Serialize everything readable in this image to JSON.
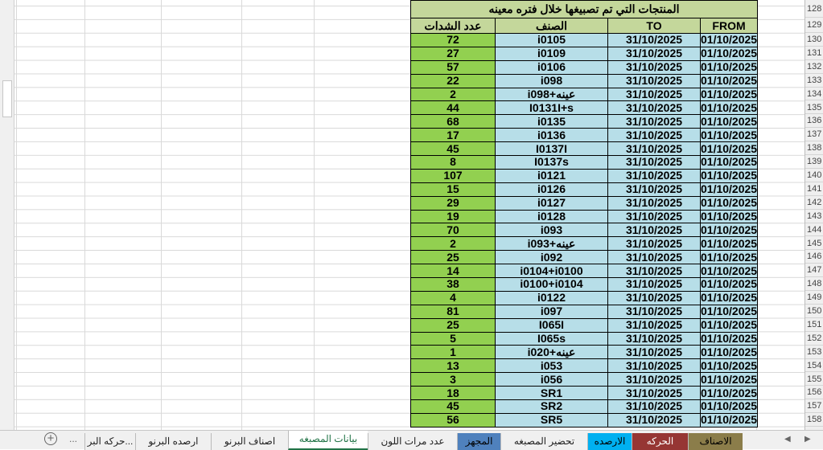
{
  "sheet": {
    "title": "المنتجات التي تم تصبيغها خلال فتره معينه",
    "headers": {
      "from": "FROM",
      "to": "TO",
      "item": "الصنف",
      "count": "عدد الشدات"
    },
    "row_numbers": [
      "128",
      "129",
      "130",
      "131",
      "132",
      "133",
      "134",
      "135",
      "136",
      "137",
      "138",
      "139",
      "140",
      "141",
      "142",
      "143",
      "144",
      "145",
      "146",
      "147",
      "148",
      "149",
      "150",
      "151",
      "152",
      "153",
      "154",
      "155",
      "156",
      "157",
      "158"
    ],
    "rows": [
      {
        "from": "01/10/2025",
        "to": "31/10/2025",
        "item": "i0105",
        "count": "72"
      },
      {
        "from": "01/10/2025",
        "to": "31/10/2025",
        "item": "i0109",
        "count": "27"
      },
      {
        "from": "01/10/2025",
        "to": "31/10/2025",
        "item": "i0106",
        "count": "57"
      },
      {
        "from": "01/10/2025",
        "to": "31/10/2025",
        "item": "i098",
        "count": "22"
      },
      {
        "from": "01/10/2025",
        "to": "31/10/2025",
        "item": "i098+عينه",
        "count": "2"
      },
      {
        "from": "01/10/2025",
        "to": "31/10/2025",
        "item": "I0131I+s",
        "count": "44"
      },
      {
        "from": "01/10/2025",
        "to": "31/10/2025",
        "item": "i0135",
        "count": "68"
      },
      {
        "from": "01/10/2025",
        "to": "31/10/2025",
        "item": "i0136",
        "count": "17"
      },
      {
        "from": "01/10/2025",
        "to": "31/10/2025",
        "item": "I0137I",
        "count": "45"
      },
      {
        "from": "01/10/2025",
        "to": "31/10/2025",
        "item": "I0137s",
        "count": "8"
      },
      {
        "from": "01/10/2025",
        "to": "31/10/2025",
        "item": "i0121",
        "count": "107"
      },
      {
        "from": "01/10/2025",
        "to": "31/10/2025",
        "item": "i0126",
        "count": "15"
      },
      {
        "from": "01/10/2025",
        "to": "31/10/2025",
        "item": "i0127",
        "count": "29"
      },
      {
        "from": "01/10/2025",
        "to": "31/10/2025",
        "item": "i0128",
        "count": "19"
      },
      {
        "from": "01/10/2025",
        "to": "31/10/2025",
        "item": "i093",
        "count": "70"
      },
      {
        "from": "01/10/2025",
        "to": "31/10/2025",
        "item": "i093+عينه",
        "count": "2"
      },
      {
        "from": "01/10/2025",
        "to": "31/10/2025",
        "item": "i092",
        "count": "25"
      },
      {
        "from": "01/10/2025",
        "to": "31/10/2025",
        "item": "i0104+i0100",
        "count": "14"
      },
      {
        "from": "01/10/2025",
        "to": "31/10/2025",
        "item": "i0100+i0104",
        "count": "38"
      },
      {
        "from": "01/10/2025",
        "to": "31/10/2025",
        "item": "i0122",
        "count": "4"
      },
      {
        "from": "01/10/2025",
        "to": "31/10/2025",
        "item": "i097",
        "count": "81"
      },
      {
        "from": "01/10/2025",
        "to": "31/10/2025",
        "item": "I065I",
        "count": "25"
      },
      {
        "from": "01/10/2025",
        "to": "31/10/2025",
        "item": "I065s",
        "count": "5"
      },
      {
        "from": "01/10/2025",
        "to": "31/10/2025",
        "item": "i020+عينه",
        "count": "1"
      },
      {
        "from": "01/10/2025",
        "to": "31/10/2025",
        "item": "i053",
        "count": "13"
      },
      {
        "from": "01/10/2025",
        "to": "31/10/2025",
        "item": "i056",
        "count": "3"
      },
      {
        "from": "01/10/2025",
        "to": "31/10/2025",
        "item": "SR1",
        "count": "18"
      },
      {
        "from": "01/10/2025",
        "to": "31/10/2025",
        "item": "SR2",
        "count": "45"
      },
      {
        "from": "01/10/2025",
        "to": "31/10/2025",
        "item": "SR5",
        "count": "56"
      }
    ],
    "colors": {
      "header": "#c4d79b",
      "count_fill": "#92d050",
      "data_fill": "#b7dee8"
    }
  },
  "tabs": [
    {
      "label": "الاصناف",
      "color": "#8b7d4a",
      "text": "#000"
    },
    {
      "label": "الحركه",
      "color": "#963634",
      "text": "#fff"
    },
    {
      "label": "الارصده",
      "color": "#00b0f0",
      "text": "#000"
    },
    {
      "label": "تحضير المصبغه",
      "color": "#f0f0f0",
      "text": "#222"
    },
    {
      "label": "المجهز",
      "color": "#4f81bd",
      "text": "#000"
    },
    {
      "label": "عدد مرات اللون",
      "color": "#f0f0f0",
      "text": "#222"
    },
    {
      "label": "بيانات المصبغه",
      "color": "#ffffff",
      "text": "#217346",
      "active": true
    },
    {
      "label": "اصناف البرنو",
      "color": "#f0f0f0",
      "text": "#222"
    },
    {
      "label": "ارصده البرنو",
      "color": "#f0f0f0",
      "text": "#222"
    },
    {
      "label": "حركه البر...",
      "color": "#f0f0f0",
      "text": "#222"
    }
  ],
  "tab_nav": {
    "more": "...",
    "add": "+",
    "prev": "◀",
    "next": "▶"
  }
}
